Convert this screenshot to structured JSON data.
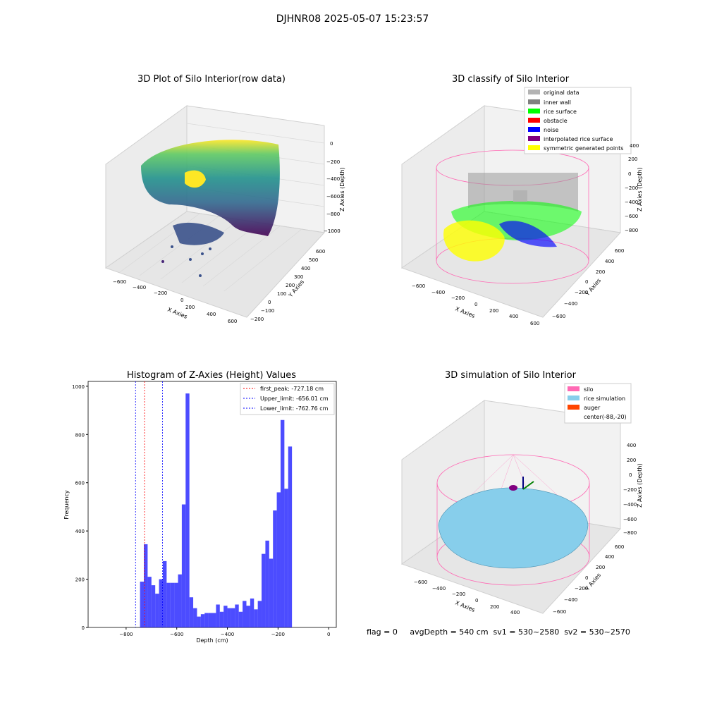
{
  "figure": {
    "suptitle": "DJHNR08 2025-05-07 15:23:57",
    "status_line": "flag = 0     avgDepth = 540 cm  sv1 = 530~2580  sv2 = 530~2570"
  },
  "chart_data": [
    {
      "type": "scatter",
      "projection": "3d",
      "title": "3D Plot of Silo Interior(row data)",
      "xlabel": "X Axies",
      "ylabel": "Y Axies",
      "zlabel": "Z Axies (Depth)",
      "xticks": [
        "−600",
        "−400",
        "−200",
        "0",
        "200",
        "400",
        "600"
      ],
      "yticks": [
        "−200",
        "−100",
        "0",
        "100",
        "200",
        "300",
        "400",
        "500",
        "600"
      ],
      "zticks": [
        "0",
        "−200",
        "−400",
        "−600",
        "−800",
        "−1000"
      ],
      "colormap": "viridis"
    },
    {
      "type": "scatter",
      "projection": "3d",
      "title": "3D classify of Silo Interior",
      "xlabel": "X Axies",
      "ylabel": "Y Axies",
      "zlabel": "Z Axies (Depth)",
      "xticks": [
        "−600",
        "−400",
        "−200",
        "0",
        "200",
        "400",
        "600"
      ],
      "yticks": [
        "−600",
        "−400",
        "−200",
        "0",
        "200",
        "400",
        "600"
      ],
      "zticks": [
        "200",
        "0",
        "−200",
        "−400",
        "−600",
        "−800"
      ],
      "zticks_extra": [
        "400"
      ],
      "legend": [
        {
          "label": "original data",
          "color": "#b3b3b3"
        },
        {
          "label": "inner wall",
          "color": "#808080"
        },
        {
          "label": "rice surface",
          "color": "#00ff00"
        },
        {
          "label": "obstacle",
          "color": "#ff0000"
        },
        {
          "label": "noise",
          "color": "#0000ff"
        },
        {
          "label": "interpolated rice surface",
          "color": "#800080"
        },
        {
          "label": "symmetric generated points",
          "color": "#ffff00"
        }
      ],
      "legend_loc": "upper right"
    },
    {
      "type": "bar",
      "title": "Histogram of Z-Axies (Height) Values",
      "xlabel": "Depth (cm)",
      "ylabel": "Frequency",
      "xlim": [
        -950,
        30
      ],
      "ylim": [
        0,
        1020
      ],
      "xticks": [
        -800,
        -600,
        -400,
        -200,
        0
      ],
      "xtick_labels": [
        "−800",
        "−600",
        "−400",
        "−200",
        "0"
      ],
      "yticks": [
        0,
        200,
        400,
        600,
        800,
        1000
      ],
      "ytick_labels": [
        "0",
        "200",
        "400",
        "600",
        "800",
        "1000"
      ],
      "bar_color": "#0000ff",
      "bin_start": -745,
      "bin_width": 15.0,
      "values": [
        190,
        345,
        210,
        175,
        140,
        200,
        275,
        185,
        185,
        185,
        220,
        510,
        970,
        125,
        80,
        45,
        55,
        60,
        60,
        60,
        95,
        65,
        90,
        80,
        80,
        95,
        65,
        110,
        90,
        120,
        75,
        110,
        305,
        360,
        285,
        485,
        560,
        860,
        575,
        750
      ],
      "vlines": [
        {
          "x": -727.18,
          "color": "#ff0000",
          "label": "first_peak: -727.18 cm"
        },
        {
          "x": -656.01,
          "color": "#0000ff",
          "label": "Upper_limit: -656.01 cm"
        },
        {
          "x": -762.76,
          "color": "#0000ff",
          "label": "Lower_limit: -762.76 cm"
        }
      ],
      "legend_loc": "upper right"
    },
    {
      "type": "surface",
      "projection": "3d",
      "title": "3D simulation of Silo Interior",
      "xlabel": "X Axies",
      "ylabel": "Y Axies",
      "zlabel": "Z Axies (Depth)",
      "xticks": [
        "−600",
        "−400",
        "−200",
        "0",
        "200",
        "400"
      ],
      "yticks": [
        "−600",
        "−400",
        "−200",
        "0",
        "200",
        "400",
        "600"
      ],
      "zticks": [
        "400",
        "200",
        "0",
        "−200",
        "−400",
        "−600",
        "−800"
      ],
      "legend": [
        {
          "label": "silo",
          "color": "#ff69b4"
        },
        {
          "label": "rice simulation",
          "color": "#87ceeb"
        },
        {
          "label": "auger",
          "color": "#ff4500"
        },
        {
          "label": "center(-88,-20)",
          "color": ""
        }
      ],
      "legend_loc": "upper right"
    }
  ]
}
